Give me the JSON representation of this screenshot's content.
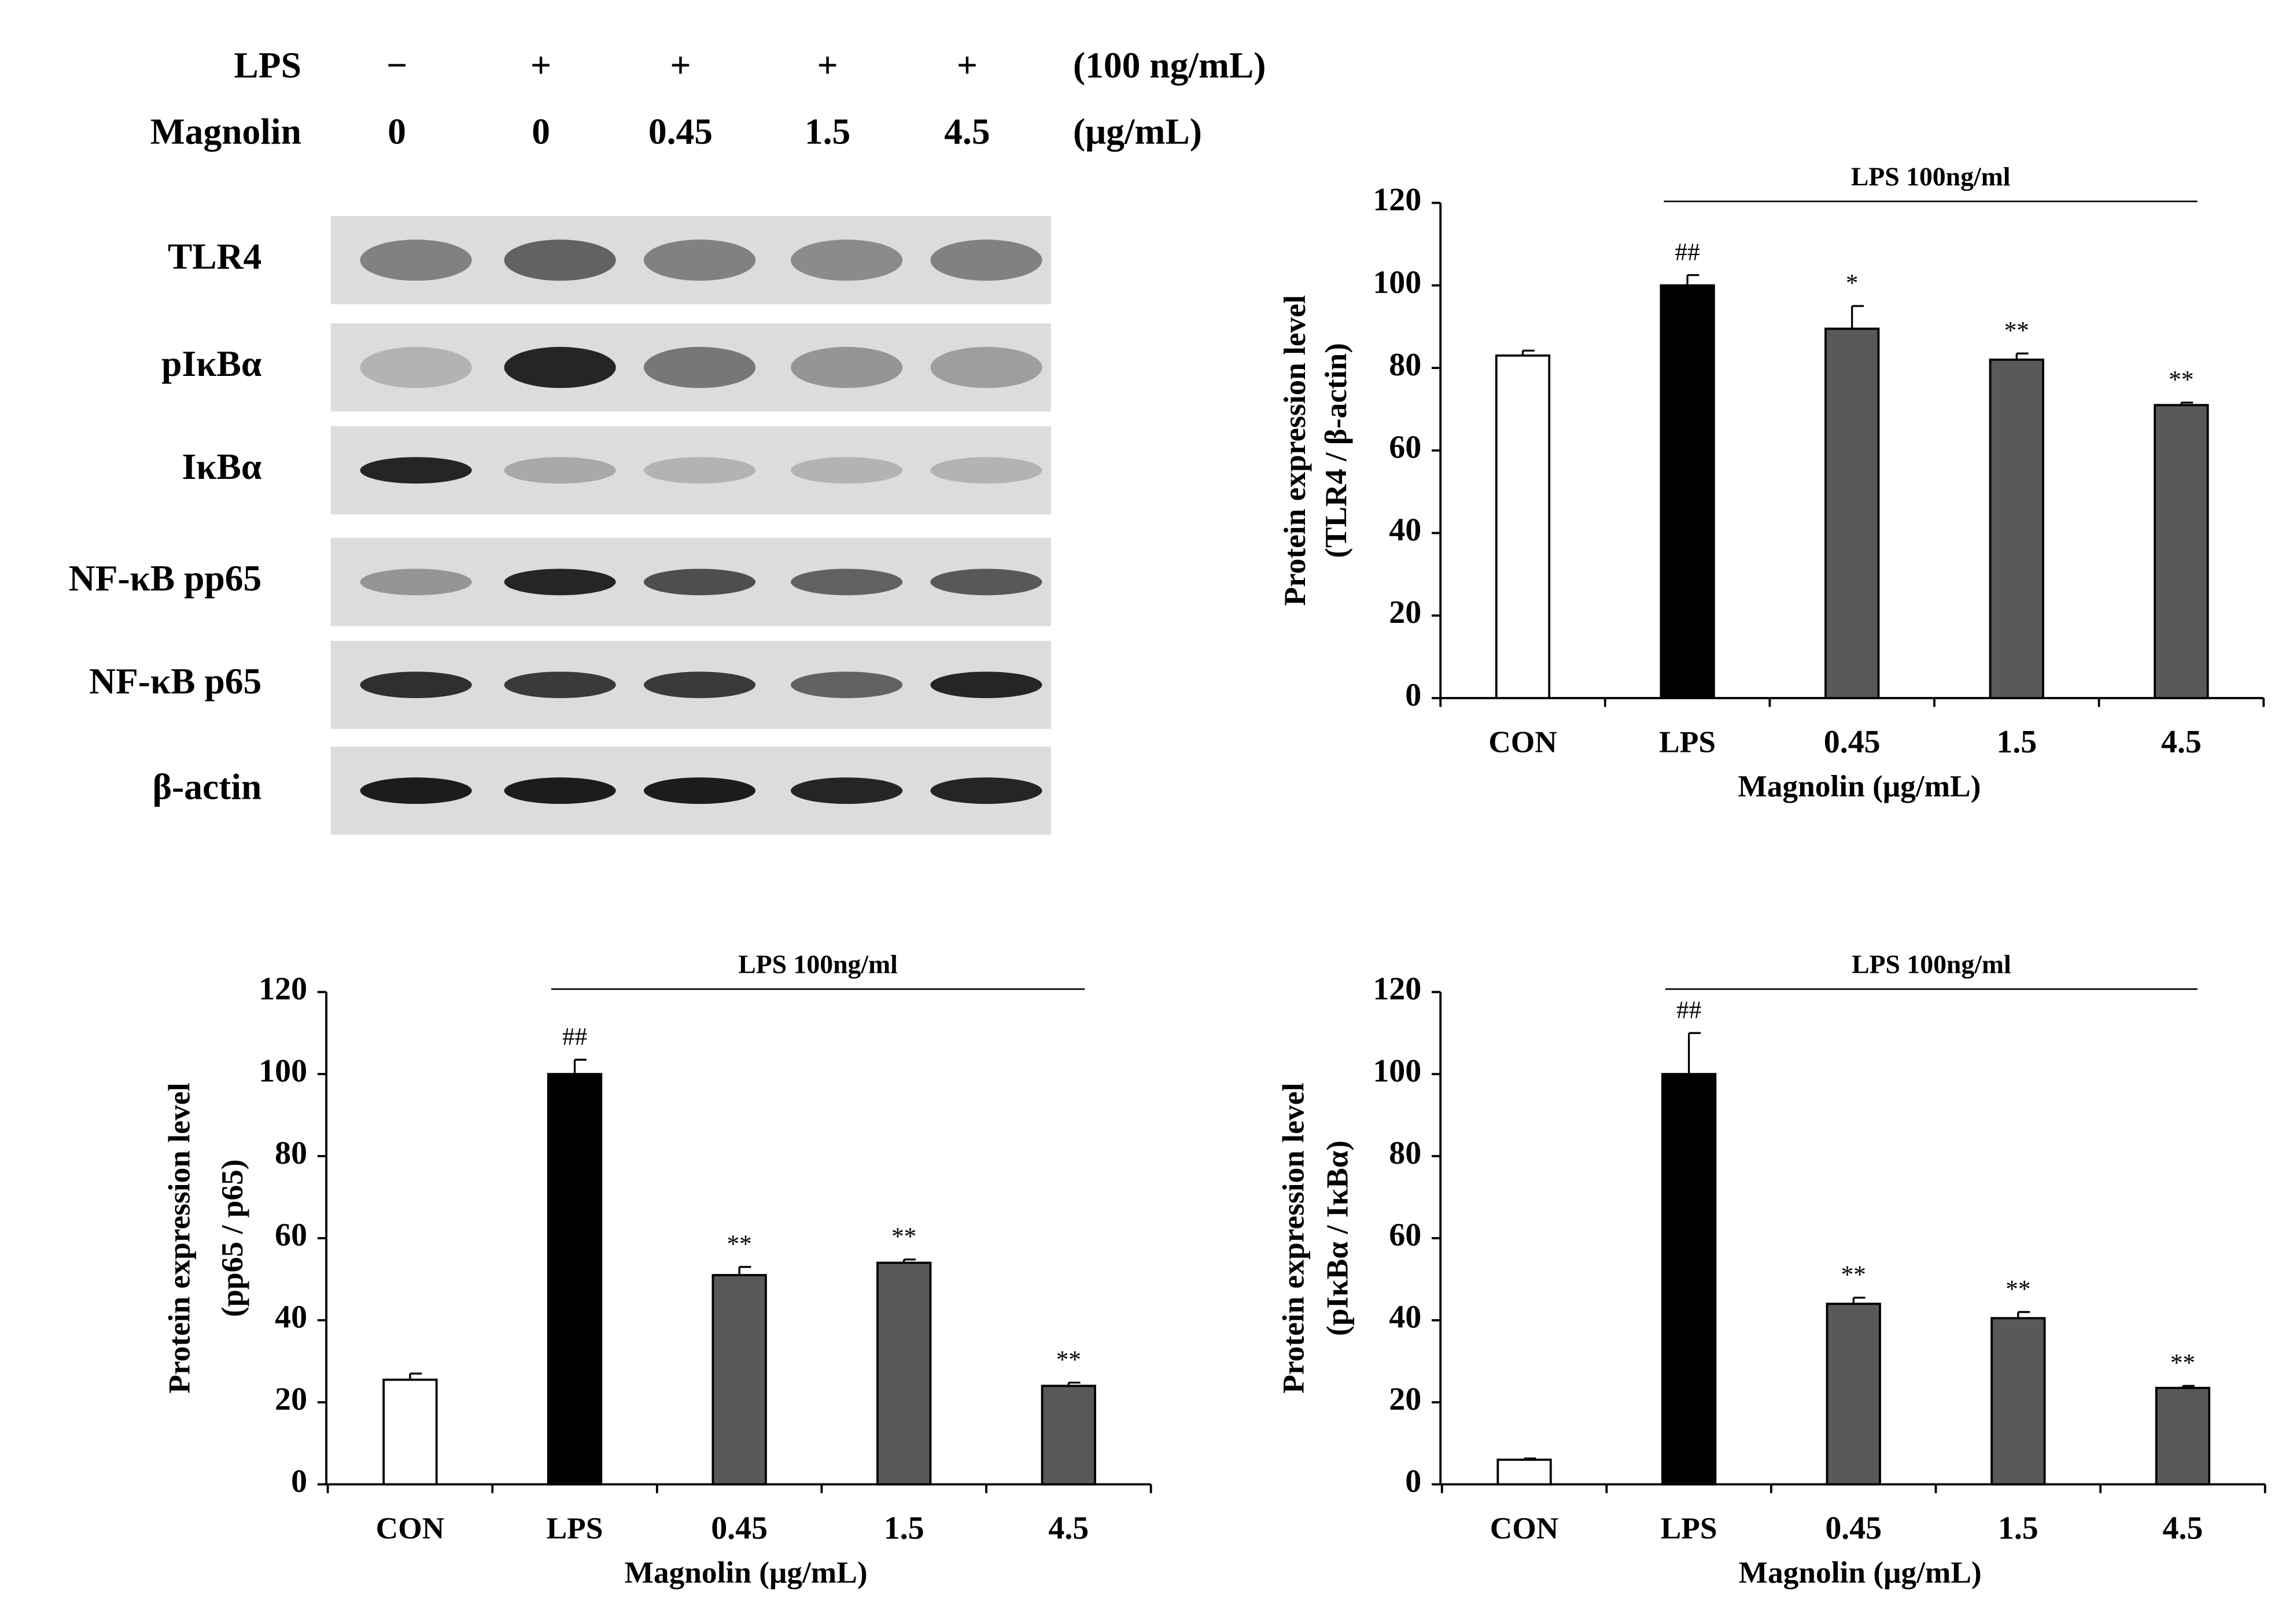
{
  "blot": {
    "treatments": [
      {
        "label": "LPS",
        "values": [
          "−",
          "+",
          "+",
          "+",
          "+"
        ],
        "unit": "(100 ng/mL)"
      },
      {
        "label": "Magnolin",
        "values": [
          "0",
          "0",
          "0.45",
          "1.5",
          "4.5"
        ],
        "unit": "(μg/mL)"
      }
    ],
    "proteins": [
      "TLR4",
      "pIκBα",
      "IκBα",
      "NF-κB pp65",
      "NF-κB p65",
      "β-actin"
    ]
  },
  "chart_data": [
    {
      "type": "bar",
      "categories": [
        "CON",
        "LPS",
        "0.45",
        "1.5",
        "4.5"
      ],
      "values": [
        83,
        100,
        89.5,
        82,
        71
      ],
      "errors": [
        1.2,
        2.5,
        5.5,
        1.5,
        0.6
      ],
      "annotations": [
        null,
        "##",
        "*",
        "**",
        "**"
      ],
      "colors": [
        "#ffffff",
        "#000000",
        "#595959",
        "#595959",
        "#595959"
      ],
      "bracket_label": "LPS 100ng/ml",
      "xlabel": "Magnolin (μg/mL)",
      "ylabel": [
        "Protein expression level",
        "(TLR4 / β-actin)"
      ],
      "ylim": [
        0,
        120
      ],
      "yticks": [
        0,
        20,
        40,
        60,
        80,
        100,
        120
      ]
    },
    {
      "type": "bar",
      "categories": [
        "CON",
        "LPS",
        "0.45",
        "1.5",
        "4.5"
      ],
      "values": [
        25.5,
        100,
        51,
        54,
        24
      ],
      "errors": [
        1.5,
        3.5,
        2,
        0.8,
        0.8
      ],
      "annotations": [
        null,
        "##",
        "**",
        "**",
        "**"
      ],
      "colors": [
        "#ffffff",
        "#000000",
        "#595959",
        "#595959",
        "#595959"
      ],
      "bracket_label": "LPS 100ng/ml",
      "xlabel": "Magnolin (μg/mL)",
      "ylabel": [
        "Protein expression level",
        "(pp65 /  p65)"
      ],
      "ylim": [
        0,
        120
      ],
      "yticks": [
        0,
        20,
        40,
        60,
        80,
        100,
        120
      ]
    },
    {
      "type": "bar",
      "categories": [
        "CON",
        "LPS",
        "0.45",
        "1.5",
        "4.5"
      ],
      "values": [
        6,
        100,
        44,
        40.5,
        23.5
      ],
      "errors": [
        0.3,
        10,
        1.5,
        1.5,
        0.5
      ],
      "annotations": [
        null,
        "##",
        "**",
        "**",
        "**"
      ],
      "colors": [
        "#ffffff",
        "#000000",
        "#595959",
        "#595959",
        "#595959"
      ],
      "bracket_label": "LPS 100ng/ml",
      "xlabel": "Magnolin (μg/mL)",
      "ylabel": [
        "Protein expression level",
        "(pIκBα / IκBα)"
      ],
      "ylim": [
        0,
        120
      ],
      "yticks": [
        0,
        20,
        40,
        60,
        80,
        100,
        120
      ]
    }
  ]
}
